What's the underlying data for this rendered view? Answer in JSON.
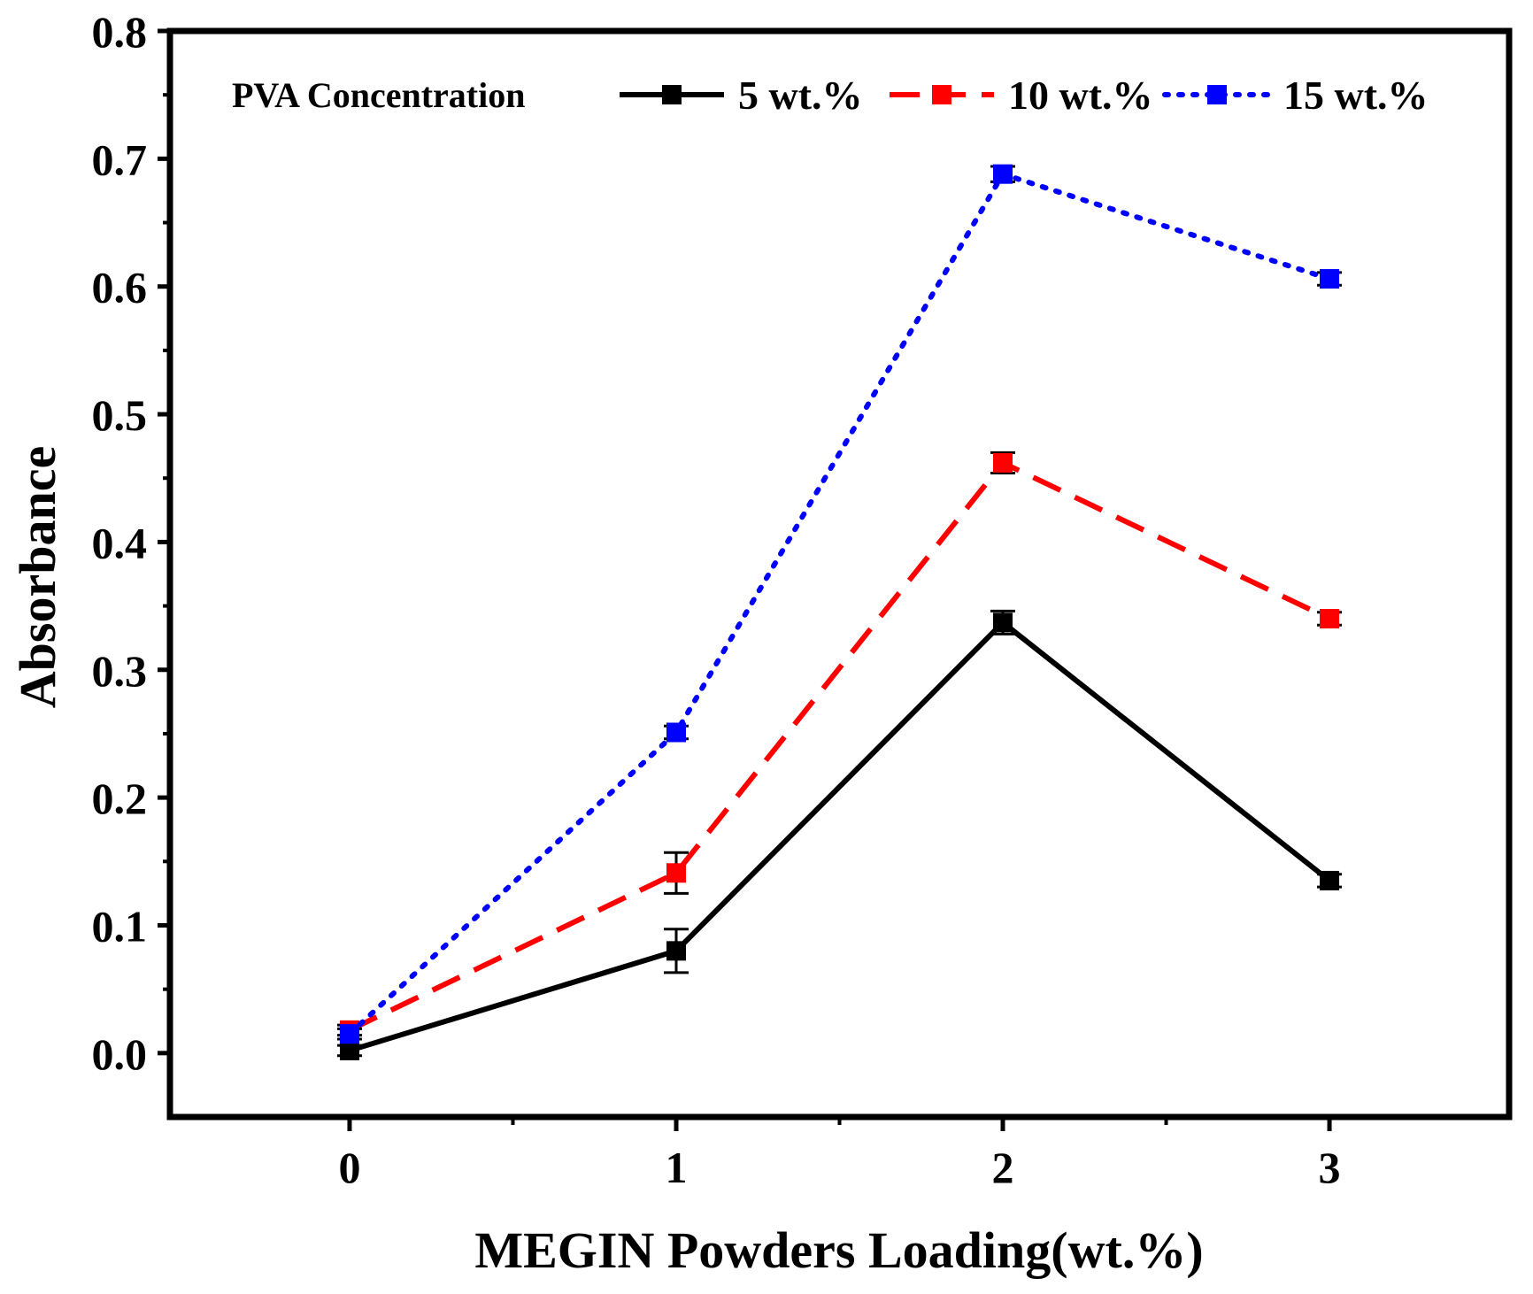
{
  "chart_data": {
    "type": "line",
    "xlabel": "MEGIN Powders Loading(wt.%)",
    "ylabel": "Absorbance",
    "x": [
      0,
      1,
      2,
      3
    ],
    "x_ticks": [
      "0",
      "1",
      "2",
      "3"
    ],
    "xlim": [
      -0.55,
      3.55
    ],
    "y_ticks": [
      "0.0",
      "0.1",
      "0.2",
      "0.3",
      "0.4",
      "0.5",
      "0.6",
      "0.7",
      "0.8"
    ],
    "ylim": [
      -0.05,
      0.8
    ],
    "grid": false,
    "legend": {
      "title": "PVA Concentration",
      "placement": "top"
    },
    "series": [
      {
        "name": "5 wt.%",
        "color": "#000000",
        "line_style": "solid",
        "values": [
          0.002,
          0.08,
          0.337,
          0.135
        ],
        "errors": [
          0.004,
          0.017,
          0.009,
          0.005
        ]
      },
      {
        "name": "10 wt.%",
        "color": "#ff0000",
        "line_style": "dashed",
        "values": [
          0.018,
          0.141,
          0.462,
          0.34
        ],
        "errors": [
          0.004,
          0.016,
          0.008,
          0.005
        ]
      },
      {
        "name": "15 wt.%",
        "color": "#0000ff",
        "line_style": "dotted",
        "values": [
          0.015,
          0.251,
          0.688,
          0.606
        ],
        "errors": [
          0.004,
          0.005,
          0.006,
          0.005
        ]
      }
    ]
  }
}
